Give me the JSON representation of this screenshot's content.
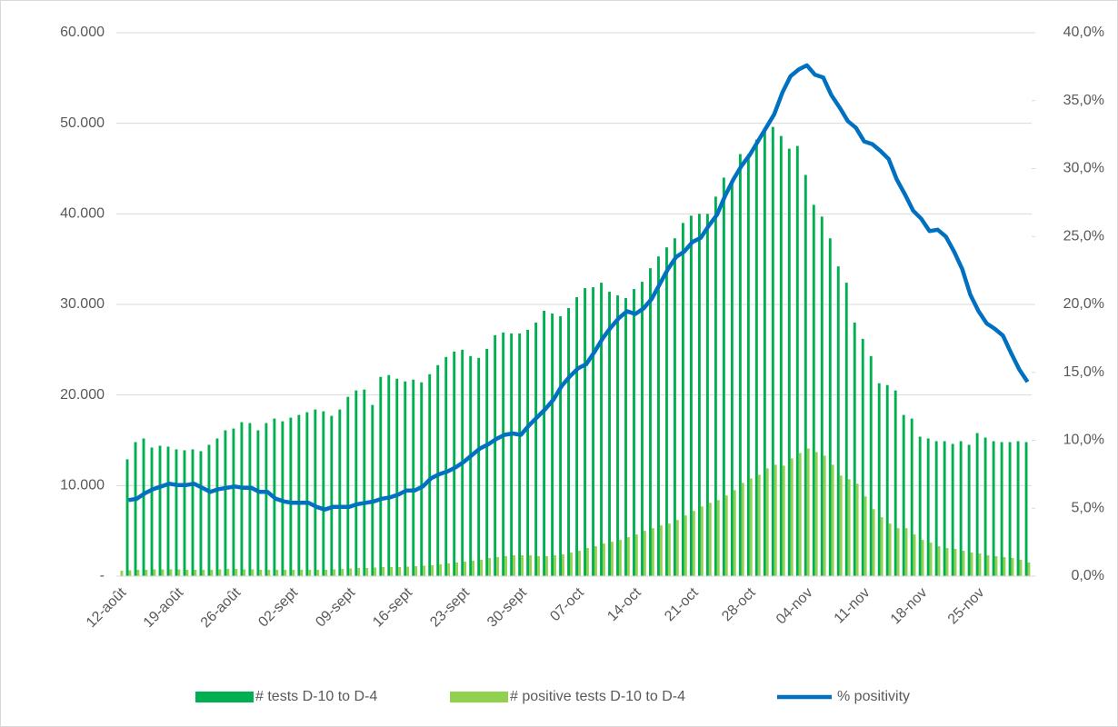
{
  "chart_data": {
    "type": "bar_line",
    "categories": [
      "12-août",
      null,
      null,
      null,
      null,
      null,
      null,
      "19-août",
      null,
      null,
      null,
      null,
      null,
      null,
      "26-août",
      null,
      null,
      null,
      null,
      null,
      null,
      "02-sept",
      null,
      null,
      null,
      null,
      null,
      null,
      "09-sept",
      null,
      null,
      null,
      null,
      null,
      null,
      "16-sept",
      null,
      null,
      null,
      null,
      null,
      null,
      "23-sept",
      null,
      null,
      null,
      null,
      null,
      null,
      "30-sept",
      null,
      null,
      null,
      null,
      null,
      null,
      "07-oct",
      null,
      null,
      null,
      null,
      null,
      null,
      "14-oct",
      null,
      null,
      null,
      null,
      null,
      null,
      "21-oct",
      null,
      null,
      null,
      null,
      null,
      null,
      "28-oct",
      null,
      null,
      null,
      null,
      null,
      null,
      "04-nov",
      null,
      null,
      null,
      null,
      null,
      null,
      "11-nov",
      null,
      null,
      null,
      null,
      null,
      null,
      "18-nov",
      null,
      null,
      null,
      null,
      null,
      null,
      "25-nov",
      null,
      null,
      null,
      null,
      null,
      null
    ],
    "series": [
      {
        "name": "# tests D-10 to D-4",
        "color": "#00b050",
        "values": [
          null,
          12900,
          14800,
          15200,
          14200,
          14400,
          14300,
          14000,
          13900,
          14000,
          13800,
          14500,
          15200,
          16100,
          16300,
          17000,
          16900,
          16100,
          16900,
          17400,
          17100,
          17500,
          17800,
          18100,
          18400,
          18200,
          17700,
          18400,
          19800,
          20500,
          20600,
          18900,
          22000,
          22200,
          21800,
          21500,
          21700,
          21400,
          22300,
          23300,
          24200,
          24800,
          25000,
          24300,
          24100,
          25100,
          26600,
          26900,
          26800,
          26800,
          27200,
          28000,
          29300,
          29000,
          28700,
          29600,
          30800,
          31800,
          31900,
          32400,
          31400,
          31000,
          30700,
          31700,
          32500,
          34000,
          35300,
          36300,
          37300,
          39000,
          39800,
          40000,
          40000,
          41900,
          44000,
          43700,
          46600,
          46600,
          48200,
          49500,
          49600,
          48600,
          47200,
          47500,
          44300,
          41000,
          39700,
          37300,
          34200,
          32400,
          28000,
          26200,
          24300,
          21300,
          21100,
          20500,
          17800,
          17400,
          15400,
          15200,
          14900,
          14900,
          14600,
          14900,
          14500,
          15800,
          15300,
          14900,
          14800,
          14800,
          14900,
          14800
        ]
      },
      {
        "name": "# positive tests D-10 to D-4",
        "color": "#92d050",
        "values": [
          600,
          650,
          700,
          700,
          750,
          750,
          750,
          750,
          700,
          700,
          700,
          700,
          750,
          800,
          800,
          750,
          750,
          700,
          700,
          700,
          700,
          700,
          700,
          700,
          700,
          700,
          750,
          800,
          850,
          900,
          900,
          950,
          1000,
          1000,
          1000,
          1050,
          1100,
          1150,
          1200,
          1300,
          1400,
          1500,
          1600,
          1700,
          1800,
          2000,
          2100,
          2200,
          2300,
          2300,
          2300,
          2200,
          2200,
          2300,
          2400,
          2600,
          2800,
          3100,
          3300,
          3600,
          3800,
          4000,
          4300,
          4600,
          5000,
          5300,
          5600,
          5800,
          6200,
          6700,
          7200,
          7700,
          8100,
          8400,
          8900,
          9500,
          10300,
          10800,
          11200,
          11900,
          12300,
          12200,
          13000,
          13600,
          14100,
          13700,
          13300,
          12300,
          11100,
          10700,
          10200,
          8800,
          7400,
          6500,
          5800,
          5300,
          5300,
          4600,
          4000,
          3700,
          3300,
          3100,
          3000,
          2800,
          2600,
          2500,
          2300,
          2200,
          2100,
          2000,
          1800,
          1500
        ]
      },
      {
        "name": "% positivity",
        "color": "#0070c0",
        "axis": "y2",
        "values": [
          null,
          5.6,
          5.7,
          6.1,
          6.4,
          6.6,
          6.8,
          6.7,
          6.7,
          6.8,
          6.5,
          6.2,
          6.4,
          6.5,
          6.6,
          6.5,
          6.5,
          6.2,
          6.2,
          5.7,
          5.5,
          5.4,
          5.4,
          5.4,
          5.1,
          4.9,
          5.1,
          5.1,
          5.1,
          5.3,
          5.4,
          5.5,
          5.7,
          5.8,
          6.0,
          6.3,
          6.3,
          6.6,
          7.2,
          7.5,
          7.7,
          8.0,
          8.4,
          8.9,
          9.4,
          9.7,
          10.1,
          10.4,
          10.5,
          10.4,
          11.1,
          11.7,
          12.3,
          13.0,
          14.0,
          14.7,
          15.3,
          15.6,
          16.5,
          17.5,
          18.3,
          19.0,
          19.5,
          19.3,
          19.7,
          20.4,
          21.5,
          22.6,
          23.5,
          23.9,
          24.6,
          24.9,
          25.8,
          26.6,
          28.0,
          29.2,
          30.2,
          31.0,
          32.0,
          33.0,
          34.0,
          35.6,
          36.8,
          37.3,
          37.6,
          36.9,
          36.7,
          35.4,
          34.5,
          33.5,
          33.0,
          32.0,
          31.8,
          31.3,
          30.7,
          29.2,
          28.1,
          26.9,
          26.3,
          25.4,
          25.5,
          25.0,
          23.9,
          22.6,
          20.7,
          19.5,
          18.6,
          18.2,
          17.7,
          16.4,
          15.2,
          14.3
        ]
      }
    ],
    "ylim": [
      0,
      60000
    ],
    "yticks": [
      {
        "value": 0,
        "label": "-"
      },
      {
        "value": 10000,
        "label": "10.000"
      },
      {
        "value": 20000,
        "label": "20.000"
      },
      {
        "value": 30000,
        "label": "30.000"
      },
      {
        "value": 40000,
        "label": "40.000"
      },
      {
        "value": 50000,
        "label": "50.000"
      },
      {
        "value": 60000,
        "label": "60.000"
      }
    ],
    "y2lim": [
      0,
      40
    ],
    "y2ticks": [
      {
        "value": 0,
        "label": "0,0%"
      },
      {
        "value": 5,
        "label": "5,0%"
      },
      {
        "value": 10,
        "label": "10,0%"
      },
      {
        "value": 15,
        "label": "15,0%"
      },
      {
        "value": 20,
        "label": "20,0%"
      },
      {
        "value": 25,
        "label": "25,0%"
      },
      {
        "value": 30,
        "label": "30,0%"
      },
      {
        "value": 35,
        "label": "35,0%"
      },
      {
        "value": 40,
        "label": "40,0%"
      }
    ],
    "grid": true,
    "legend": "bottom"
  }
}
